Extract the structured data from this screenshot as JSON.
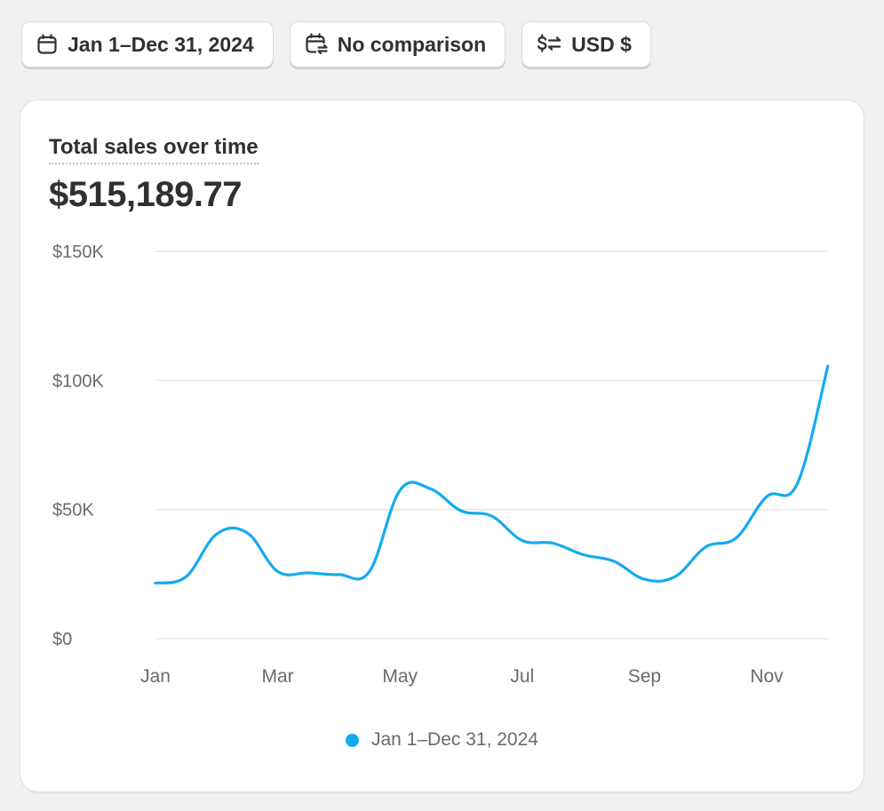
{
  "toolbar": {
    "date_range_label": "Jan 1–Dec 31, 2024",
    "comparison_label": "No comparison",
    "currency_label": "USD $"
  },
  "icons": {
    "date_range": "calendar-icon",
    "comparison": "calendar-compare-icon",
    "currency": "currency-exchange-icon"
  },
  "card": {
    "title": "Total sales over time",
    "total": "$515,189.77"
  },
  "colors": {
    "series": "#14aaf0",
    "grid": "#ebebeb",
    "background": "#f1f1f1"
  },
  "chart_data": {
    "type": "line",
    "title": "Total sales over time",
    "xlabel": "",
    "ylabel": "",
    "ylim": [
      0,
      150000
    ],
    "yticks": [
      {
        "value": 0,
        "label": "$0"
      },
      {
        "value": 50000,
        "label": "$50K"
      },
      {
        "value": 100000,
        "label": "$100K"
      },
      {
        "value": 150000,
        "label": "$150K"
      }
    ],
    "xticks": [
      {
        "index": 0,
        "label": "Jan"
      },
      {
        "index": 4,
        "label": "Mar"
      },
      {
        "index": 8,
        "label": "May"
      },
      {
        "index": 12,
        "label": "Jul"
      },
      {
        "index": 16,
        "label": "Sep"
      },
      {
        "index": 20,
        "label": "Nov"
      }
    ],
    "grid": true,
    "legend_position": "bottom-center",
    "series": [
      {
        "name": "Jan 1–Dec 31, 2024",
        "x": [
          "Jan 1",
          "Jan 16",
          "Feb 1",
          "Feb 16",
          "Mar 1",
          "Mar 16",
          "Apr 1",
          "Apr 16",
          "May 1",
          "May 16",
          "Jun 1",
          "Jun 16",
          "Jul 1",
          "Jul 16",
          "Aug 1",
          "Aug 16",
          "Sep 1",
          "Sep 16",
          "Oct 1",
          "Oct 16",
          "Nov 1",
          "Nov 16",
          "Dec 1"
        ],
        "values": [
          21500,
          24000,
          40500,
          41000,
          26000,
          25500,
          24800,
          26000,
          57500,
          58000,
          49500,
          47500,
          38000,
          37000,
          32500,
          30000,
          23000,
          24000,
          35500,
          39000,
          55000,
          60000,
          105500
        ]
      }
    ]
  }
}
